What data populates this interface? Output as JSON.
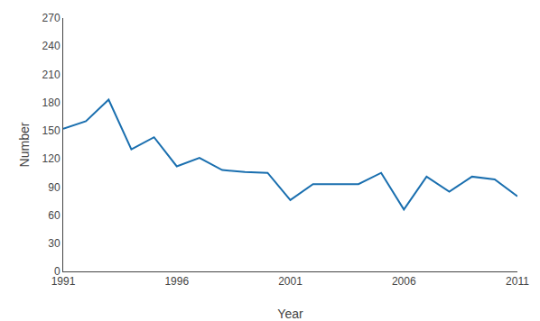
{
  "chart_data": {
    "type": "line",
    "x": [
      1991,
      1992,
      1993,
      1994,
      1995,
      1996,
      1997,
      1998,
      1999,
      2000,
      2001,
      2002,
      2003,
      2004,
      2005,
      2006,
      2007,
      2008,
      2009,
      2010,
      2011
    ],
    "values": [
      152,
      160,
      183,
      130,
      143,
      112,
      121,
      108,
      106,
      105,
      76,
      93,
      93,
      93,
      105,
      66,
      101,
      85,
      101,
      98,
      80
    ],
    "color": "#1a6faf",
    "xlabel": "Year",
    "ylabel": "Number",
    "xlim": [
      1991,
      2011
    ],
    "ylim": [
      0,
      270
    ],
    "xticks": [
      1991,
      1996,
      2001,
      2006,
      2011
    ],
    "yticks": [
      0,
      30,
      60,
      90,
      120,
      150,
      180,
      210,
      240,
      270
    ],
    "grid": false
  }
}
